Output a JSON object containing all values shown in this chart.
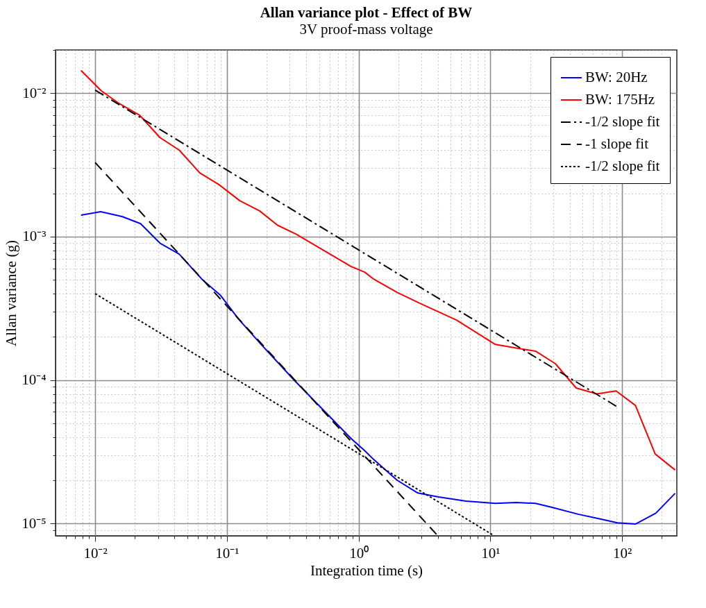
{
  "chart_data": {
    "type": "line",
    "title": "Allan variance plot - Effect of BW",
    "subtitle": "3V proof-mass voltage",
    "xlabel": "Integration time (s)",
    "ylabel": "Allan variance (g)",
    "log": "xy",
    "grid": true,
    "legend": "top right",
    "marker": "none",
    "xlim": [
      0.005,
      260
    ],
    "ylim": [
      8.2e-06,
      0.02
    ],
    "xticks": [
      {
        "value": 0.006,
        "label": null
      },
      {
        "value": 0.007,
        "label": null
      },
      {
        "value": 0.008,
        "label": null
      },
      {
        "value": 0.009,
        "label": null
      },
      {
        "value": 0.01,
        "label": "10⁻²"
      },
      {
        "value": 0.02,
        "label": null
      },
      {
        "value": 0.03,
        "label": null
      },
      {
        "value": 0.04,
        "label": null
      },
      {
        "value": 0.05,
        "label": null
      },
      {
        "value": 0.06,
        "label": null
      },
      {
        "value": 0.07,
        "label": null
      },
      {
        "value": 0.08,
        "label": null
      },
      {
        "value": 0.09,
        "label": null
      },
      {
        "value": 0.1,
        "label": "10⁻¹"
      },
      {
        "value": 0.2,
        "label": null
      },
      {
        "value": 0.3,
        "label": null
      },
      {
        "value": 0.4,
        "label": null
      },
      {
        "value": 0.5,
        "label": null
      },
      {
        "value": 0.6,
        "label": null
      },
      {
        "value": 0.7,
        "label": null
      },
      {
        "value": 0.8,
        "label": null
      },
      {
        "value": 0.9,
        "label": null
      },
      {
        "value": 1,
        "label": "10⁰"
      },
      {
        "value": 2,
        "label": null
      },
      {
        "value": 3,
        "label": null
      },
      {
        "value": 4,
        "label": null
      },
      {
        "value": 5,
        "label": null
      },
      {
        "value": 6,
        "label": null
      },
      {
        "value": 7,
        "label": null
      },
      {
        "value": 8,
        "label": null
      },
      {
        "value": 9,
        "label": null
      },
      {
        "value": 10,
        "label": "10¹"
      },
      {
        "value": 20,
        "label": null
      },
      {
        "value": 30,
        "label": null
      },
      {
        "value": 40,
        "label": null
      },
      {
        "value": 50,
        "label": null
      },
      {
        "value": 60,
        "label": null
      },
      {
        "value": 70,
        "label": null
      },
      {
        "value": 80,
        "label": null
      },
      {
        "value": 90,
        "label": null
      },
      {
        "value": 100,
        "label": "10²"
      },
      {
        "value": 200,
        "label": null
      }
    ],
    "yticks": [
      {
        "value": 9e-06,
        "label": null
      },
      {
        "value": 1e-05,
        "label": "10⁻⁵"
      },
      {
        "value": 2e-05,
        "label": null
      },
      {
        "value": 3e-05,
        "label": null
      },
      {
        "value": 4e-05,
        "label": null
      },
      {
        "value": 5e-05,
        "label": null
      },
      {
        "value": 6e-05,
        "label": null
      },
      {
        "value": 7e-05,
        "label": null
      },
      {
        "value": 8e-05,
        "label": null
      },
      {
        "value": 9e-05,
        "label": null
      },
      {
        "value": 0.0001,
        "label": "10⁻⁴"
      },
      {
        "value": 0.0002,
        "label": null
      },
      {
        "value": 0.0003,
        "label": null
      },
      {
        "value": 0.0004,
        "label": null
      },
      {
        "value": 0.0005,
        "label": null
      },
      {
        "value": 0.0006,
        "label": null
      },
      {
        "value": 0.0007,
        "label": null
      },
      {
        "value": 0.0008,
        "label": null
      },
      {
        "value": 0.0009,
        "label": null
      },
      {
        "value": 0.001,
        "label": "10⁻³"
      },
      {
        "value": 0.002,
        "label": null
      },
      {
        "value": 0.003,
        "label": null
      },
      {
        "value": 0.004,
        "label": null
      },
      {
        "value": 0.005,
        "label": null
      },
      {
        "value": 0.006,
        "label": null
      },
      {
        "value": 0.007,
        "label": null
      },
      {
        "value": 0.008,
        "label": null
      },
      {
        "value": 0.009,
        "label": null
      },
      {
        "value": 0.01,
        "label": "10⁻²"
      },
      {
        "value": 0.02,
        "label": null
      }
    ],
    "series": [
      {
        "name": "BW: 20Hz",
        "color": "#0000ff",
        "line_style": "solid",
        "x": [
          0.0078,
          0.011,
          0.016,
          0.0221,
          0.031,
          0.0434,
          0.0645,
          0.089,
          0.123,
          0.184,
          0.323,
          0.61,
          0.877,
          1.11,
          1.3,
          1.96,
          2.81,
          4.03,
          6.53,
          10.9,
          15.7,
          22,
          29.7,
          46.3,
          66.4,
          91.9,
          126,
          180,
          252
        ],
        "values": [
          0.00141,
          0.00149,
          0.00138,
          0.00123,
          0.0009,
          0.000755,
          0.000505,
          0.000391,
          0.000265,
          0.000175,
          0.0001,
          5.5e-05,
          3.9e-05,
          3.22e-05,
          2.79e-05,
          2e-05,
          1.63e-05,
          1.53e-05,
          1.43e-05,
          1.38e-05,
          1.4e-05,
          1.38e-05,
          1.29e-05,
          1.16e-05,
          1.08e-05,
          1.01e-05,
          9.9e-06,
          1.18e-05,
          1.62e-05
        ]
      },
      {
        "name": "BW: 175Hz",
        "color": "#ff0000",
        "line_style": "solid",
        "x": [
          0.0078,
          0.0111,
          0.0152,
          0.0218,
          0.031,
          0.0434,
          0.0622,
          0.0871,
          0.125,
          0.177,
          0.242,
          0.335,
          0.877,
          1.11,
          1.3,
          1.96,
          2.92,
          5.52,
          10.9,
          16.3,
          22,
          31.1,
          44.7,
          64.1,
          89.8,
          126,
          178,
          252
        ],
        "values": [
          0.0144,
          0.0104,
          0.00846,
          0.007,
          0.0049,
          0.00401,
          0.00278,
          0.0023,
          0.00178,
          0.00151,
          0.0012,
          0.00104,
          0.000618,
          0.000565,
          0.000505,
          0.000408,
          0.000342,
          0.000262,
          0.000177,
          0.000166,
          0.000159,
          0.00013,
          8.8e-05,
          8e-05,
          8.4e-05,
          6.65e-05,
          3.05e-05,
          2.36e-05
        ]
      },
      {
        "name": "-1/2 slope fit",
        "color": "#000000",
        "line_style": "dashdot",
        "x": [
          0.01,
          91.9
        ],
        "values": [
          0.0105,
          6.5e-05
        ]
      },
      {
        "name": "-1 slope fit",
        "color": "#000000",
        "line_style": "dashed",
        "x": [
          0.01,
          3.99
        ],
        "values": [
          0.00328,
          8.2e-06
        ]
      },
      {
        "name": "-1/2 slope fit",
        "color": "#000000",
        "line_style": "dotted",
        "x": [
          0.01,
          10.7
        ],
        "values": [
          0.0004,
          8.2e-06
        ]
      }
    ]
  }
}
